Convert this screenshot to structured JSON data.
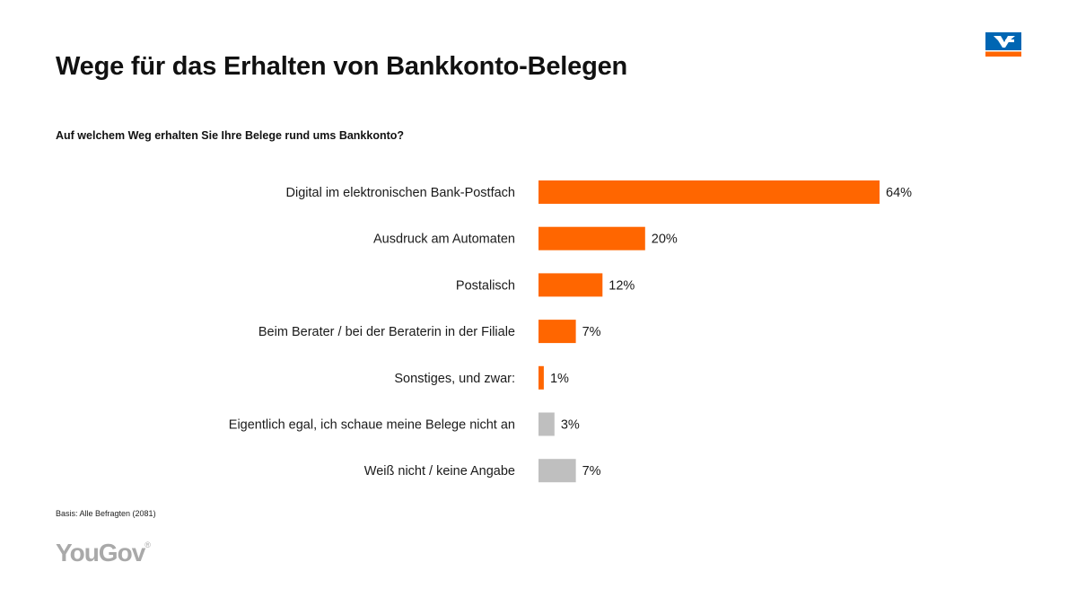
{
  "header": {
    "title": "Wege für das Erhalten von Bankkonto-Belegen",
    "subtitle": "Auf welchem Weg erhalten Sie Ihre Belege rund ums Bankkonto?"
  },
  "footer": {
    "basis": "Basis: Alle Befragten (2081)",
    "brand": "YouGov"
  },
  "logos": {
    "bank_logo": "volksbank-raiffeisenbank-icon"
  },
  "colors": {
    "accent": "#FF6600",
    "neutral": "#BFBFBF",
    "logo_blue": "#0066B3"
  },
  "chart_data": {
    "type": "bar",
    "orientation": "horizontal",
    "title": "Auf welchem Weg erhalten Sie Ihre Belege rund ums Bankkonto?",
    "xlabel": "",
    "ylabel": "",
    "unit": "%",
    "xlim": [
      0,
      64
    ],
    "grid": false,
    "categories": [
      "Digital im elektronischen Bank-Postfach",
      "Ausdruck am Automaten",
      "Postalisch",
      "Beim Berater / bei der Beraterin in der Filiale",
      "Sonstiges, und zwar:",
      "Eigentlich egal, ich schaue meine Belege nicht an",
      "Weiß nicht / keine Angabe"
    ],
    "values": [
      64,
      20,
      12,
      7,
      1,
      3,
      7
    ],
    "labels": [
      "64%",
      "20%",
      "12%",
      "7%",
      "1%",
      "3%",
      "7%"
    ],
    "bar_colors": [
      "#FF6600",
      "#FF6600",
      "#FF6600",
      "#FF6600",
      "#FF6600",
      "#BFBFBF",
      "#BFBFBF"
    ]
  }
}
